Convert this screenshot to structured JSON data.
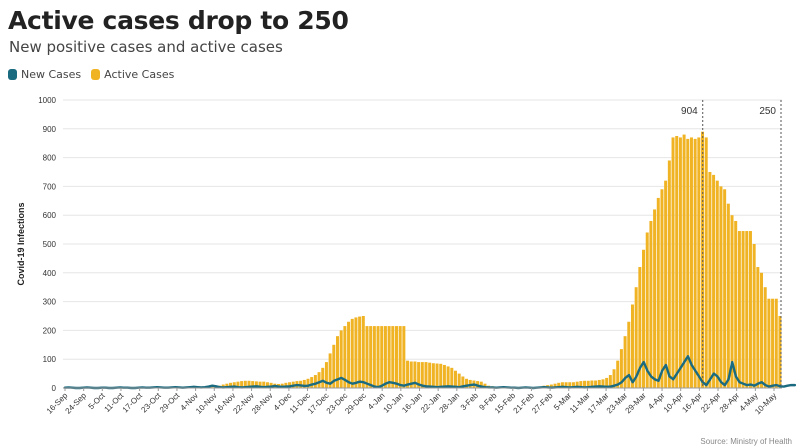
{
  "header": {
    "title": "Active cases drop to 250",
    "subtitle": "New positive cases and active cases"
  },
  "legend": {
    "items": [
      {
        "label": "New Cases",
        "color": "#1a6a80"
      },
      {
        "label": "Active Cases",
        "color": "#f0b323"
      }
    ]
  },
  "source": "Source: Ministry of Health",
  "chart_data": {
    "type": "bar",
    "title": "",
    "ylabel": "Covid-19 Infections",
    "ylim": [
      0,
      1000
    ],
    "yticks": [
      0,
      100,
      200,
      300,
      400,
      500,
      600,
      700,
      800,
      900,
      1000
    ],
    "xtick_labels": [
      "16-Sep",
      "24-Sep",
      "5-Oct",
      "11-Oct",
      "17-Oct",
      "23-Oct",
      "29-Oct",
      "4-Nov",
      "10-Nov",
      "16-Nov",
      "22-Nov",
      "28-Nov",
      "4-Dec",
      "11-Dec",
      "17-Dec",
      "23-Dec",
      "29-Dec",
      "4-Jan",
      "10-Jan",
      "16-Jan",
      "22-Jan",
      "28-Jan",
      "3-Feb",
      "9-Feb",
      "15-Feb",
      "21-Feb",
      "27-Feb",
      "5-Mar",
      "11-Mar",
      "17-Mar",
      "23-Mar",
      "29-Mar",
      "4-Apr",
      "10-Apr",
      "16-Apr",
      "22-Apr",
      "28-Apr",
      "4-May",
      "10-May"
    ],
    "annotations": [
      {
        "label": "904",
        "value": 904
      },
      {
        "label": "250",
        "value": 250
      }
    ],
    "series": [
      {
        "name": "Active Cases",
        "kind": "bar",
        "color": "#f0b323",
        "values": [
          0,
          0,
          0,
          0,
          0,
          0,
          0,
          0,
          0,
          0,
          0,
          0,
          0,
          0,
          0,
          0,
          0,
          0,
          0,
          0,
          0,
          0,
          0,
          0,
          0,
          0,
          0,
          0,
          0,
          0,
          0,
          0,
          0,
          0,
          0,
          0,
          0,
          0,
          1,
          2,
          3,
          5,
          8,
          12,
          15,
          18,
          20,
          22,
          24,
          25,
          25,
          24,
          23,
          22,
          22,
          20,
          18,
          15,
          14,
          15,
          18,
          20,
          22,
          24,
          25,
          28,
          32,
          38,
          45,
          55,
          70,
          90,
          120,
          150,
          180,
          200,
          215,
          230,
          240,
          245,
          248,
          250,
          215,
          215,
          215,
          215,
          215,
          215,
          215,
          215,
          215,
          215,
          215,
          95,
          92,
          92,
          90,
          90,
          90,
          88,
          86,
          85,
          84,
          80,
          75,
          70,
          60,
          50,
          40,
          32,
          28,
          26,
          24,
          22,
          15,
          8,
          6,
          5,
          5,
          5,
          5,
          4,
          3,
          3,
          2,
          2,
          2,
          2,
          3,
          5,
          8,
          10,
          12,
          15,
          18,
          20,
          20,
          20,
          20,
          22,
          24,
          25,
          25,
          26,
          26,
          28,
          30,
          35,
          45,
          65,
          95,
          135,
          180,
          230,
          290,
          350,
          420,
          480,
          540,
          580,
          620,
          660,
          690,
          720,
          790,
          870,
          875,
          870,
          880,
          865,
          870,
          865,
          870,
          890,
          870,
          750,
          740,
          720,
          700,
          690,
          640,
          600,
          580,
          545,
          545,
          545,
          545,
          500,
          420,
          400,
          350,
          310,
          310,
          310,
          250
        ]
      },
      {
        "name": "New Cases",
        "kind": "line",
        "color": "#1a6a80",
        "values": [
          1,
          2,
          1,
          0,
          0,
          1,
          2,
          1,
          0,
          0,
          1,
          1,
          0,
          0,
          1,
          2,
          1,
          1,
          0,
          0,
          1,
          2,
          1,
          1,
          2,
          3,
          2,
          1,
          1,
          2,
          3,
          2,
          1,
          2,
          3,
          4,
          3,
          2,
          3,
          5,
          8,
          6,
          3,
          2,
          3,
          4,
          5,
          3,
          2,
          3,
          4,
          5,
          6,
          4,
          3,
          4,
          5,
          7,
          5,
          4,
          5,
          6,
          8,
          10,
          9,
          7,
          8,
          12,
          15,
          20,
          25,
          18,
          15,
          25,
          30,
          35,
          28,
          20,
          15,
          18,
          22,
          20,
          15,
          10,
          5,
          3,
          8,
          15,
          20,
          18,
          15,
          10,
          8,
          12,
          15,
          18,
          12,
          8,
          6,
          5,
          4,
          3,
          4,
          5,
          6,
          5,
          4,
          3,
          6,
          8,
          10,
          12,
          8,
          5,
          3,
          2,
          2,
          1,
          2,
          3,
          2,
          1,
          1,
          0,
          1,
          2,
          1,
          0,
          1,
          2,
          3,
          2,
          1,
          2,
          3,
          4,
          3,
          2,
          3,
          4,
          3,
          2,
          3,
          4,
          5,
          6,
          5,
          4,
          5,
          8,
          12,
          20,
          35,
          45,
          20,
          40,
          70,
          90,
          60,
          40,
          30,
          25,
          60,
          80,
          40,
          30,
          50,
          70,
          90,
          110,
          80,
          60,
          40,
          20,
          10,
          30,
          50,
          40,
          20,
          10,
          30,
          90,
          40,
          20,
          15,
          10,
          12,
          8,
          15,
          20,
          10,
          5,
          8,
          10,
          6,
          5,
          8,
          10,
          10
        ]
      }
    ]
  }
}
